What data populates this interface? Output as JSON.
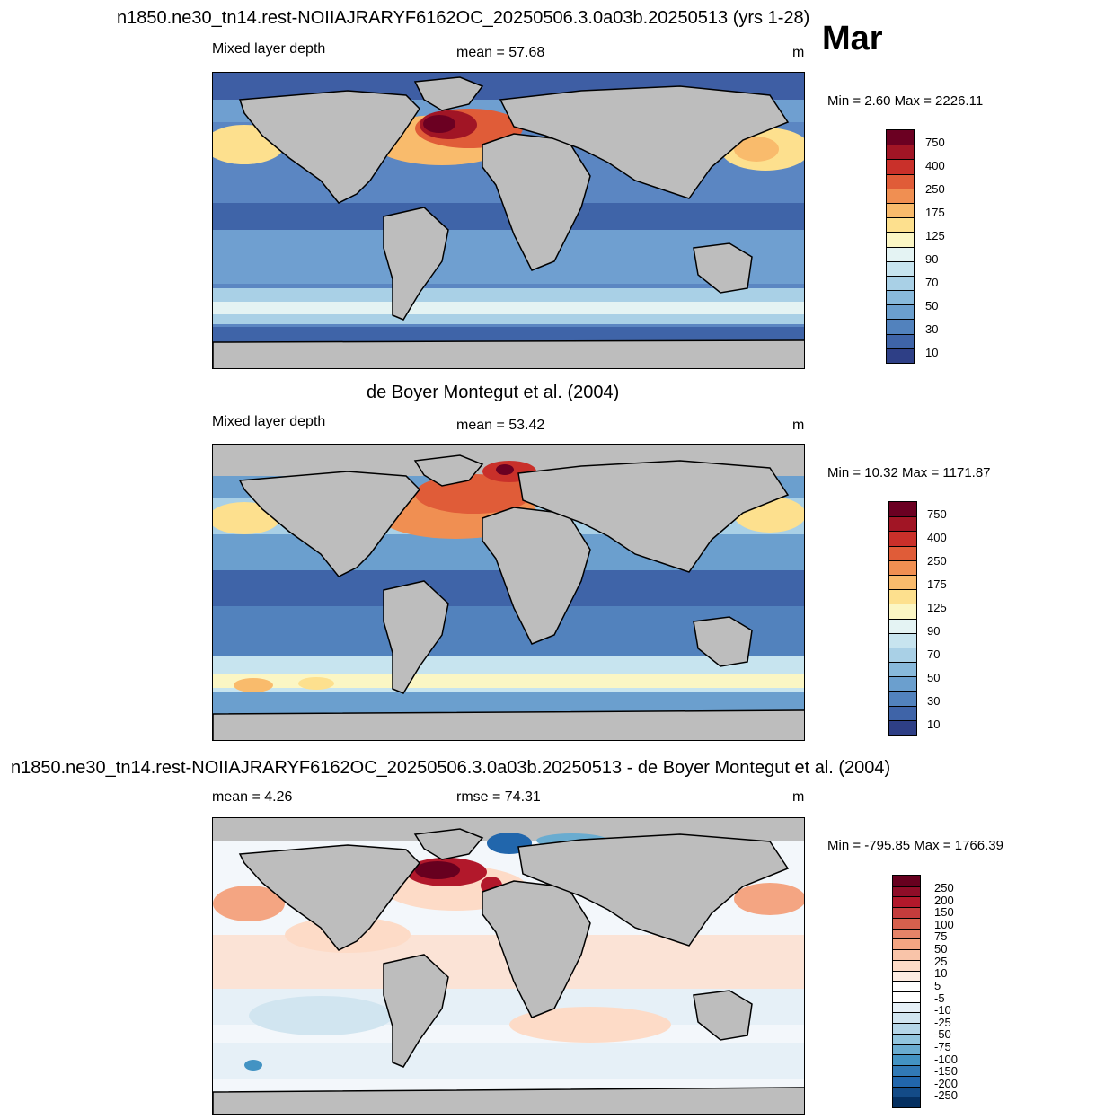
{
  "top_title": "n1850.ne30_tn14.rest-NOIIAJRARYF6162OC_20250506.3.0a03b.20250513 (yrs 1-28)",
  "month": "Mar",
  "panel1": {
    "left_label": "Mixed layer depth",
    "center_label": "mean =  57.68",
    "units": "m",
    "minmax": "Min =   2.60 Max = 2226.11",
    "colorbar_labels": [
      "750",
      "400",
      "250",
      "175",
      "125",
      "90",
      "70",
      "50",
      "30",
      "10"
    ]
  },
  "panel2": {
    "title": "de Boyer Montegut et al. (2004)",
    "left_label": "Mixed layer depth",
    "center_label": "mean =  53.42",
    "units": "m",
    "minmax": "Min =  10.32 Max = 1171.87",
    "colorbar_labels": [
      "750",
      "400",
      "250",
      "175",
      "125",
      "90",
      "70",
      "50",
      "30",
      "10"
    ]
  },
  "panel3": {
    "title": "n1850.ne30_tn14.rest-NOIIAJRARYF6162OC_20250506.3.0a03b.20250513 - de Boyer Montegut et al. (2004)",
    "left_label": "mean =   4.26",
    "center_label": "rmse =  74.31",
    "units": "m",
    "minmax": "Min = -795.85 Max = 1766.39",
    "colorbar_labels": [
      "250",
      "200",
      "150",
      "100",
      "75",
      "50",
      "25",
      "10",
      "5",
      "-5",
      "-10",
      "-25",
      "-50",
      "-75",
      "-100",
      "-150",
      "-200",
      "-250"
    ]
  },
  "colors": {
    "land": "#bdbdbd",
    "seq_palette": [
      "#6b0022",
      "#a11525",
      "#c9302a",
      "#e05c38",
      "#f08f52",
      "#f9bb6c",
      "#fde08e",
      "#fbf6c4",
      "#e4f3f3",
      "#c7e4ef",
      "#a9d0e6",
      "#88b9db",
      "#6b9fce",
      "#5282bd",
      "#3f64a8",
      "#2e3f86"
    ],
    "div_palette": [
      "#67001f",
      "#8f0d28",
      "#b2182b",
      "#c43c3c",
      "#d6604d",
      "#e58368",
      "#f4a582",
      "#f9c4a9",
      "#fddbc7",
      "#fdece2",
      "#ffffff",
      "#ffffff",
      "#e6f0f7",
      "#d1e5f0",
      "#b5d6e8",
      "#92c5de",
      "#6aacd0",
      "#4393c3",
      "#3179b5",
      "#2166ac",
      "#134b87",
      "#053061"
    ]
  }
}
